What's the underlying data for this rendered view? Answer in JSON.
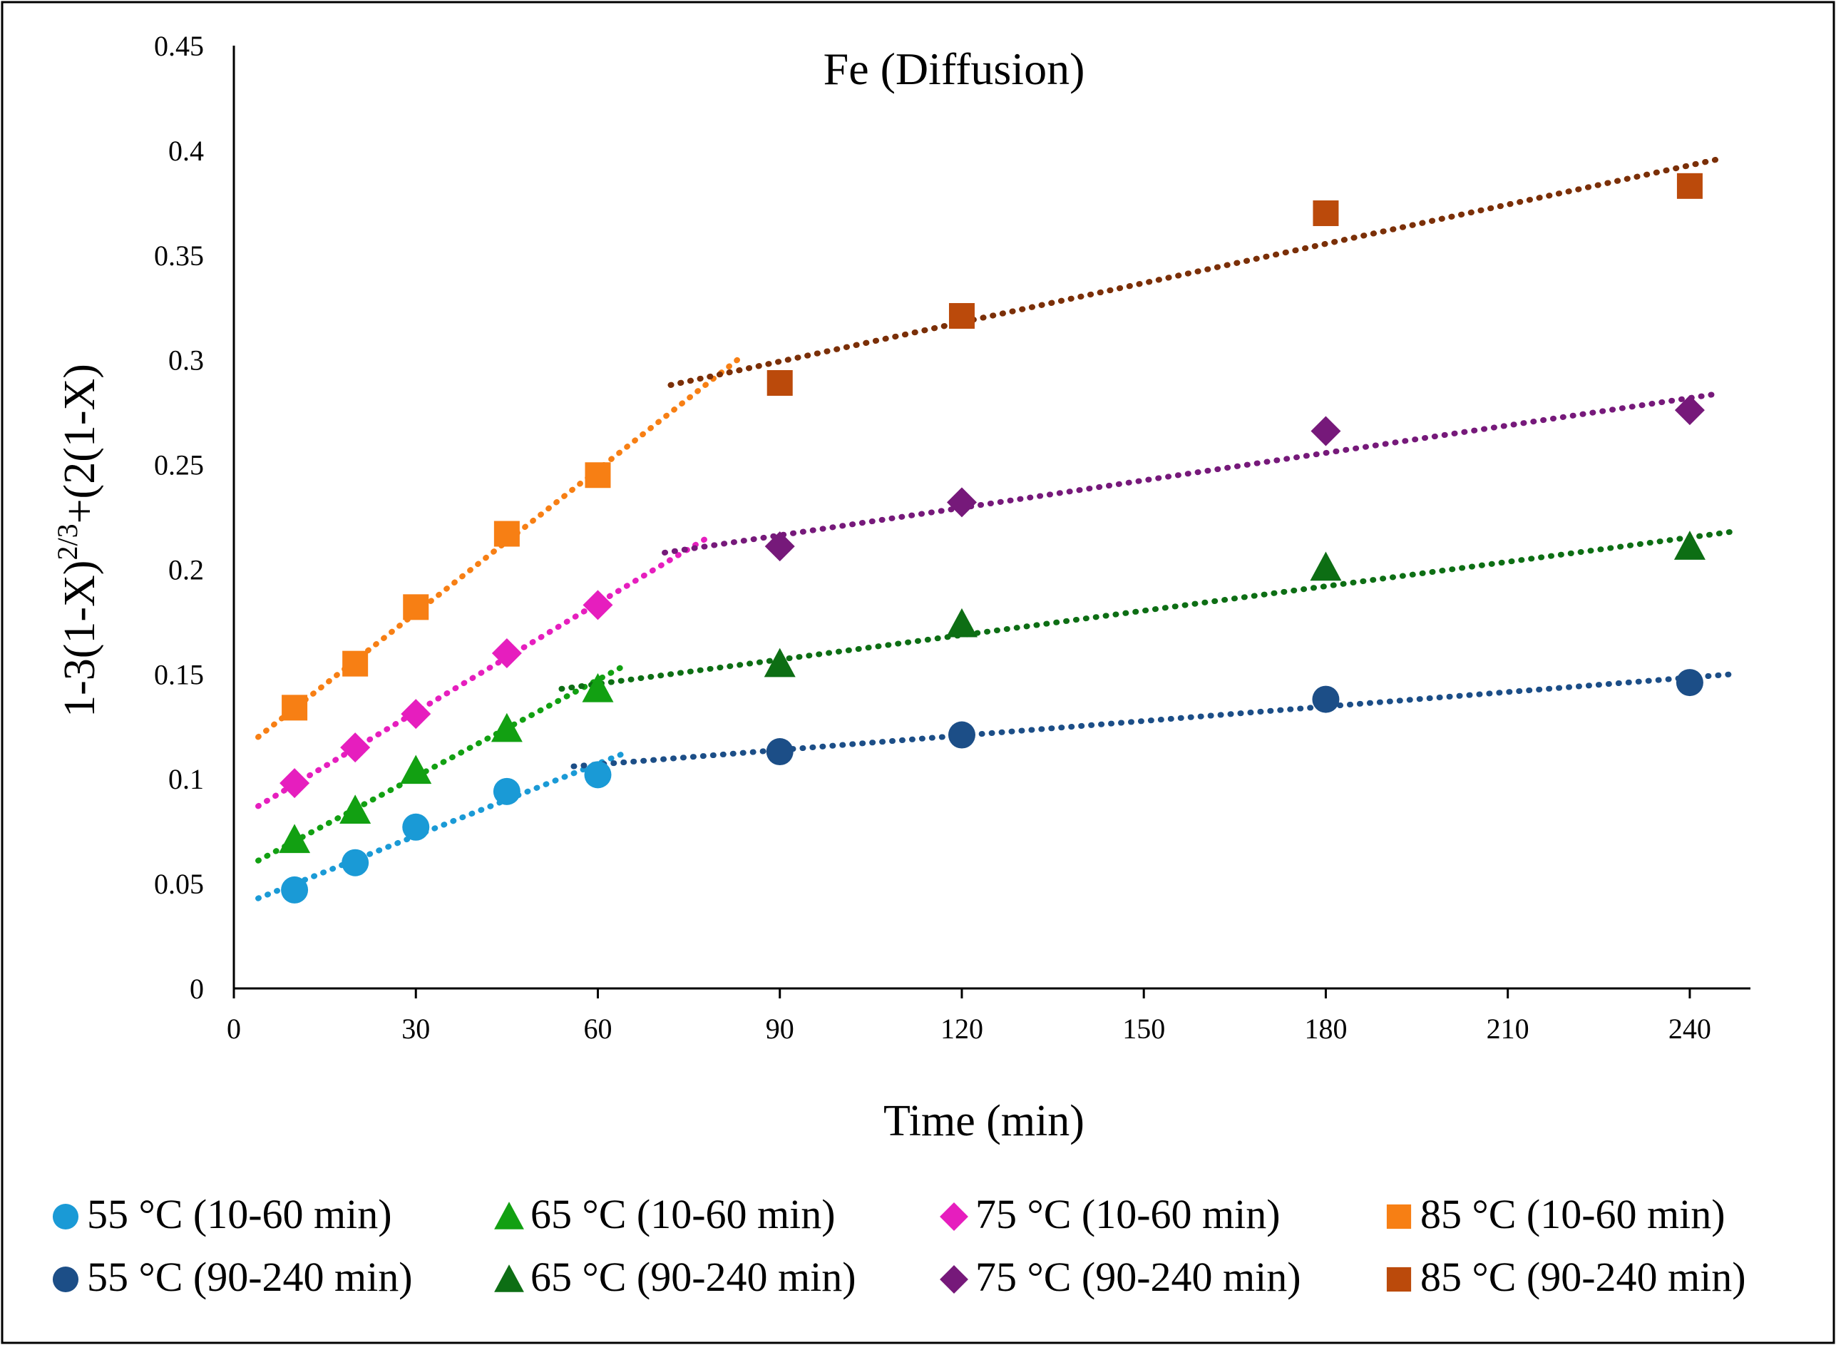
{
  "chart_data": {
    "type": "scatter",
    "title": "Fe (Diffusion)",
    "xlabel": "Time (min)",
    "ylabel": {
      "base": "1-3(1-X)",
      "sup": "2/3",
      "tail": "+(2(1-X)"
    },
    "xlim": [
      0,
      250
    ],
    "ylim": [
      0,
      0.45
    ],
    "xticks": [
      "0",
      "30",
      "60",
      "90",
      "120",
      "150",
      "180",
      "210",
      "240"
    ],
    "yticks": [
      "0",
      "0.05",
      "0.1",
      "0.15",
      "0.2",
      "0.25",
      "0.3",
      "0.35",
      "0.4",
      "0.45"
    ],
    "grid": false,
    "legend_position": "bottom",
    "series": [
      {
        "name": "55 °C (10-60 min)",
        "marker": "circle",
        "color": "#1a9ad6",
        "x": [
          10,
          20,
          30,
          45,
          60
        ],
        "y": [
          0.047,
          0.06,
          0.077,
          0.094,
          0.102
        ],
        "trend": {
          "x": [
            4,
            65
          ],
          "y": [
            0.043,
            0.113
          ]
        }
      },
      {
        "name": "65 °C (10-60 min)",
        "marker": "triangle",
        "color": "#12a012",
        "x": [
          10,
          20,
          30,
          45,
          60
        ],
        "y": [
          0.071,
          0.085,
          0.104,
          0.124,
          0.143
        ],
        "trend": {
          "x": [
            4,
            65
          ],
          "y": [
            0.061,
            0.155
          ]
        }
      },
      {
        "name": "75 °C (10-60 min)",
        "marker": "diamond",
        "color": "#e61ebe",
        "x": [
          10,
          20,
          30,
          45,
          60
        ],
        "y": [
          0.098,
          0.115,
          0.131,
          0.16,
          0.183
        ],
        "trend": {
          "x": [
            4,
            78
          ],
          "y": [
            0.087,
            0.215
          ]
        }
      },
      {
        "name": "85 °C (10-60 min)",
        "marker": "square",
        "color": "#f77f14",
        "x": [
          10,
          20,
          30,
          45,
          60
        ],
        "y": [
          0.134,
          0.155,
          0.182,
          0.217,
          0.245
        ],
        "trend": {
          "x": [
            4,
            83
          ],
          "y": [
            0.12,
            0.3
          ]
        }
      },
      {
        "name": "55 °C (90-240 min)",
        "marker": "circle",
        "color": "#1c4e87",
        "x": [
          90,
          120,
          180,
          240
        ],
        "y": [
          0.113,
          0.121,
          0.138,
          0.146
        ],
        "trend": {
          "x": [
            56,
            247
          ],
          "y": [
            0.106,
            0.15
          ]
        }
      },
      {
        "name": "65 °C (90-240 min)",
        "marker": "triangle",
        "color": "#0d6e14",
        "x": [
          90,
          120,
          180,
          240
        ],
        "y": [
          0.155,
          0.174,
          0.201,
          0.211
        ],
        "trend": {
          "x": [
            54,
            247
          ],
          "y": [
            0.143,
            0.218
          ]
        }
      },
      {
        "name": "75 °C (90-240 min)",
        "marker": "diamond",
        "color": "#76197a",
        "x": [
          90,
          120,
          180,
          240
        ],
        "y": [
          0.211,
          0.232,
          0.266,
          0.276
        ],
        "trend": {
          "x": [
            71,
            245
          ],
          "y": [
            0.208,
            0.284
          ]
        }
      },
      {
        "name": "85 °C (90-240 min)",
        "marker": "square",
        "color": "#bb4a0b",
        "x": [
          90,
          120,
          180,
          240
        ],
        "y": [
          0.289,
          0.321,
          0.37,
          0.383
        ],
        "trend": {
          "x": [
            72,
            245
          ],
          "y": [
            0.288,
            0.396
          ]
        }
      },
      {
        "name": "",
        "marker": "none",
        "color": "#7a2f08",
        "trend_only": true,
        "trend": {
          "x": [
            72,
            245
          ],
          "y": [
            0.288,
            0.396
          ]
        }
      }
    ]
  }
}
